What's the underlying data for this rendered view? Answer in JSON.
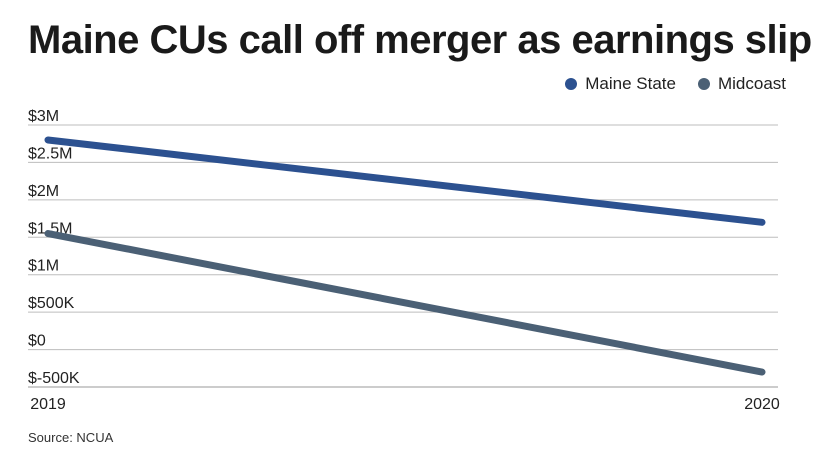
{
  "title": "Maine CUs call off merger as earnings slip",
  "source": "Source: NCUA",
  "chart_data": {
    "type": "line",
    "title": "Maine CUs call off merger as earnings slip",
    "x": [
      "2019",
      "2020"
    ],
    "series": [
      {
        "name": "Maine State",
        "color": "#2c5190",
        "values": [
          2800000,
          1700000
        ]
      },
      {
        "name": "Midcoast",
        "color": "#4b6075",
        "values": [
          1550000,
          -300000
        ]
      }
    ],
    "ylim": [
      -500000,
      3000000
    ],
    "yticks": [
      3000000,
      2500000,
      2000000,
      1500000,
      1000000,
      500000,
      0,
      -500000
    ],
    "ytick_labels": [
      "$3M",
      "$2.5M",
      "$2M",
      "$1.5M",
      "$1M",
      "$500K",
      "$0",
      "$-500K"
    ],
    "grid": true,
    "legend": "top-right"
  }
}
